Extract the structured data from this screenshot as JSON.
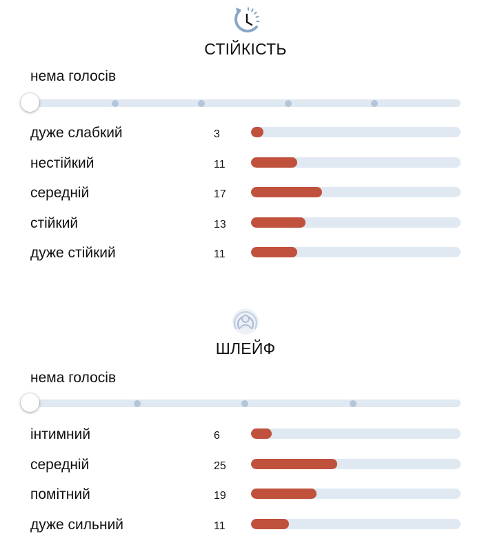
{
  "longevity": {
    "title": "СТІЙКІСТЬ",
    "icon": "clock-rewind-icon",
    "vote_label": "нема голосів",
    "slider_ticks": 4,
    "max_count": 50,
    "rows": [
      {
        "label": "дуже слабкий",
        "count": "3",
        "value": 3
      },
      {
        "label": "нестійкий",
        "count": "11",
        "value": 11
      },
      {
        "label": "середній",
        "count": "17",
        "value": 17
      },
      {
        "label": "стійкий",
        "count": "13",
        "value": 13
      },
      {
        "label": "дуже стійкий",
        "count": "11",
        "value": 11
      }
    ]
  },
  "sillage": {
    "title": "ШЛЕЙФ",
    "icon": "person-aura-icon",
    "vote_label": "нема голосів",
    "slider_ticks": 3,
    "max_count": 61,
    "rows": [
      {
        "label": "інтимний",
        "count": "6",
        "value": 6
      },
      {
        "label": "середній",
        "count": "25",
        "value": 25
      },
      {
        "label": "помітний",
        "count": "19",
        "value": 19
      },
      {
        "label": "дуже сильний",
        "count": "11",
        "value": 11
      }
    ]
  },
  "colors": {
    "accent": "#c0513d",
    "track": "#e0e9f2",
    "tick": "#b3c5d9",
    "icon": "#8aa6c5"
  }
}
